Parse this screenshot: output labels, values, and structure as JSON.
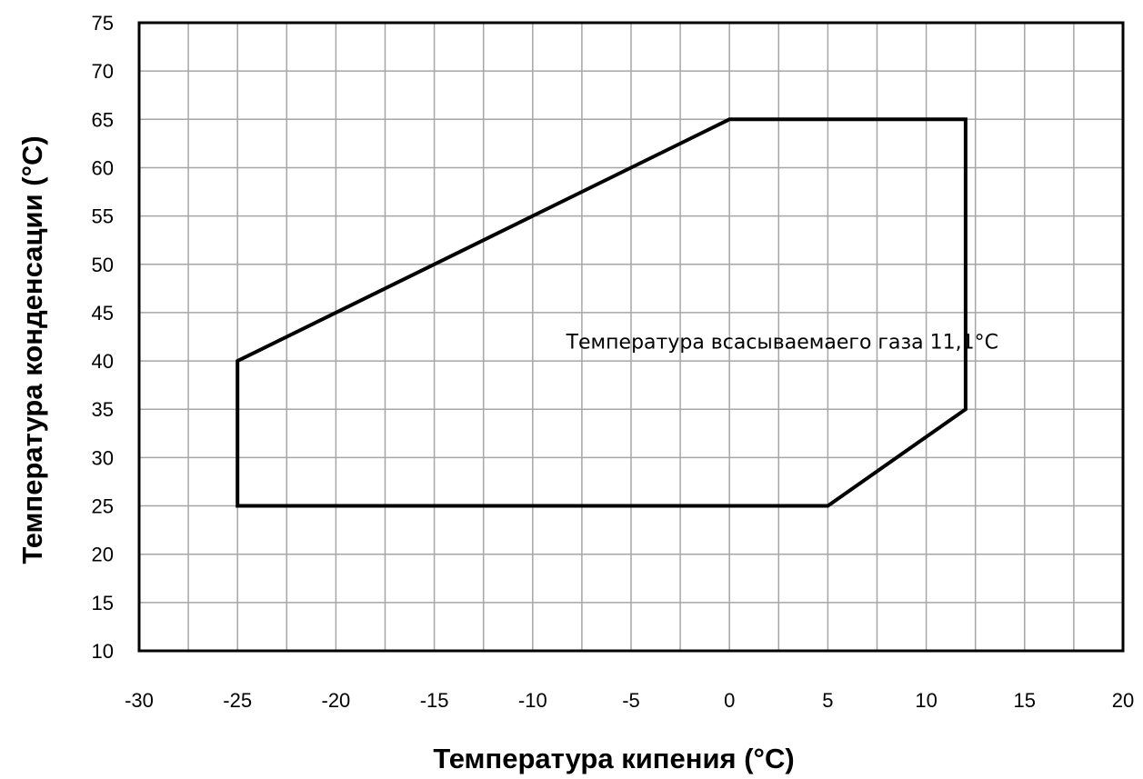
{
  "chart_data": {
    "type": "line",
    "title": "",
    "xlabel": "Температура кипения (°C)",
    "ylabel": "Температура конденсации (°C)",
    "xlim": [
      -30,
      20
    ],
    "ylim": [
      10,
      75
    ],
    "x_ticks": [
      -30,
      -25,
      -20,
      -15,
      -10,
      -5,
      0,
      5,
      10,
      15,
      20
    ],
    "y_ticks": [
      10,
      15,
      20,
      25,
      30,
      35,
      40,
      45,
      50,
      55,
      60,
      65,
      70,
      75
    ],
    "x_minor_gridlines": [
      -27.5,
      -22.5,
      -17.5,
      -12.5,
      -7.5,
      -2.5,
      2.5,
      7.5,
      12.5,
      17.5
    ],
    "grid": true,
    "legend": "none",
    "series": [
      {
        "x": [
          -25,
          0,
          12,
          12,
          5,
          -25,
          -25
        ],
        "y": [
          40,
          65,
          65,
          35,
          25,
          25,
          40
        ],
        "color": "#000000",
        "closed": true
      }
    ],
    "annotations": [
      {
        "text": "Температура всасываемаего газа 11,1°C",
        "x": -8.3,
        "y": 41.3
      }
    ]
  }
}
